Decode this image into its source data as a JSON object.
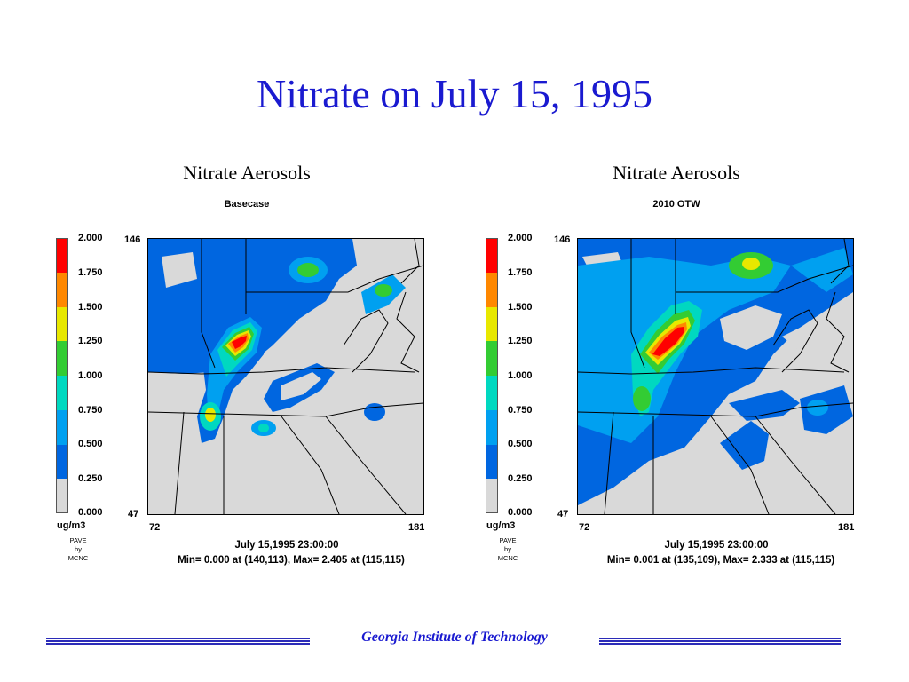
{
  "slide": {
    "title": "Nitrate on July 15, 1995",
    "footer": "Georgia Institute of Technology"
  },
  "legend": {
    "units": "ug/m3",
    "credit": [
      "PAVE",
      "by",
      "MCNC"
    ],
    "ticks": [
      "2.000",
      "1.750",
      "1.500",
      "1.250",
      "1.000",
      "0.750",
      "0.500",
      "0.250",
      "0.000"
    ],
    "colors": [
      "#ff0000",
      "#ff8800",
      "#e8e800",
      "#33cc33",
      "#00d8c0",
      "#00a0f0",
      "#0066e0",
      "#0033c8",
      "#d9d9d9"
    ]
  },
  "panels": [
    {
      "title": "Nitrate Aerosols",
      "subtitle": "Basecase",
      "y_top": "146",
      "y_bottom": "47",
      "x_left": "72",
      "x_right": "181",
      "timestamp": "July 15,1995 23:00:00",
      "minmax": "Min=   0.000 at (140,113), Max=   2.405 at (115,115)"
    },
    {
      "title": "Nitrate Aerosols",
      "subtitle": "2010 OTW",
      "y_top": "146",
      "y_bottom": "47",
      "x_left": "72",
      "x_right": "181",
      "timestamp": "July 15,1995 23:00:00",
      "minmax": "Min=   0.001 at (135,109), Max=   2.333 at (115,115)"
    }
  ]
}
